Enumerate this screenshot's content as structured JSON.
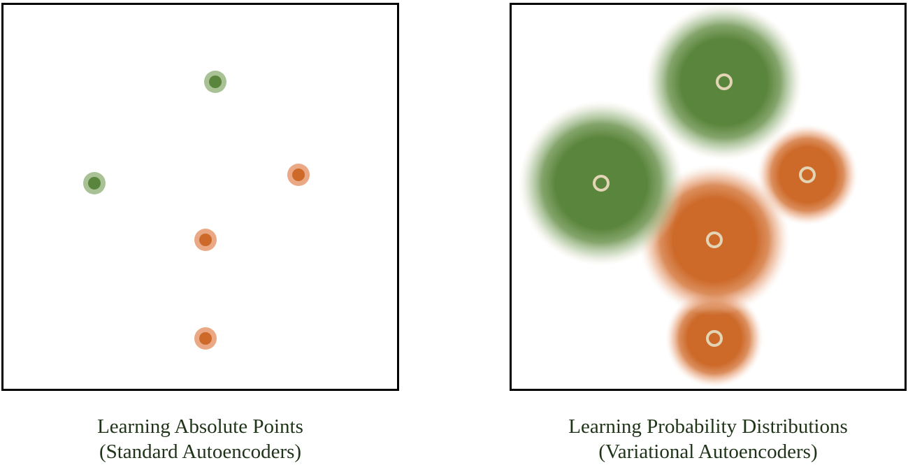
{
  "colors": {
    "green": "#5a853c",
    "orange": "#cd6a2a",
    "green_halo": "#a8c195",
    "orange_halo": "#eaa984",
    "ring": "#e2d4b4",
    "border": "#000000",
    "text": "#1e3318"
  },
  "left_panel": {
    "caption_line1": "Learning Absolute Points",
    "caption_line2": "(Standard Autoencoders)",
    "points": [
      {
        "class": "green"
      },
      {
        "class": "green"
      },
      {
        "class": "orange"
      },
      {
        "class": "orange"
      },
      {
        "class": "orange"
      }
    ]
  },
  "right_panel": {
    "caption_line1": "Learning Probability Distributions",
    "caption_line2": "(Variational Autoencoders)",
    "distributions": [
      {
        "class": "green"
      },
      {
        "class": "green"
      },
      {
        "class": "orange"
      },
      {
        "class": "orange"
      },
      {
        "class": "orange"
      }
    ]
  }
}
